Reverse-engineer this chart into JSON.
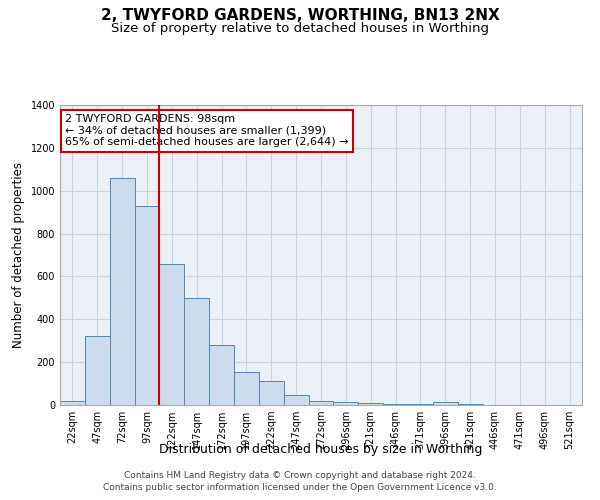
{
  "title": "2, TWYFORD GARDENS, WORTHING, BN13 2NX",
  "subtitle": "Size of property relative to detached houses in Worthing",
  "xlabel": "Distribution of detached houses by size in Worthing",
  "ylabel": "Number of detached properties",
  "footer_line1": "Contains HM Land Registry data © Crown copyright and database right 2024.",
  "footer_line2": "Contains public sector information licensed under the Open Government Licence v3.0.",
  "annotation_line1": "2 TWYFORD GARDENS: 98sqm",
  "annotation_line2": "← 34% of detached houses are smaller (1,399)",
  "annotation_line3": "65% of semi-detached houses are larger (2,644) →",
  "bar_labels": [
    "22sqm",
    "47sqm",
    "72sqm",
    "97sqm",
    "122sqm",
    "147sqm",
    "172sqm",
    "197sqm",
    "222sqm",
    "247sqm",
    "272sqm",
    "296sqm",
    "321sqm",
    "346sqm",
    "371sqm",
    "396sqm",
    "421sqm",
    "446sqm",
    "471sqm",
    "496sqm",
    "521sqm"
  ],
  "bar_values": [
    20,
    320,
    1060,
    930,
    660,
    500,
    280,
    155,
    110,
    45,
    20,
    15,
    10,
    7,
    7,
    15,
    3,
    2,
    2,
    2,
    2
  ],
  "bar_color": "#ccdcec",
  "bar_edge_color": "#5588aa",
  "bg_color": "#eaf0f6",
  "grid_color": "#c8d4e0",
  "vline_x_idx": 3,
  "vline_color": "#cc0000",
  "ylim": [
    0,
    1400
  ],
  "yticks": [
    0,
    200,
    400,
    600,
    800,
    1000,
    1200,
    1400
  ],
  "annotation_box_facecolor": "#ffffff",
  "annotation_box_edgecolor": "#cc0000",
  "title_fontsize": 11,
  "subtitle_fontsize": 9.5,
  "xlabel_fontsize": 9,
  "ylabel_fontsize": 8.5,
  "tick_fontsize": 7,
  "footer_fontsize": 6.5,
  "annotation_fontsize": 8
}
